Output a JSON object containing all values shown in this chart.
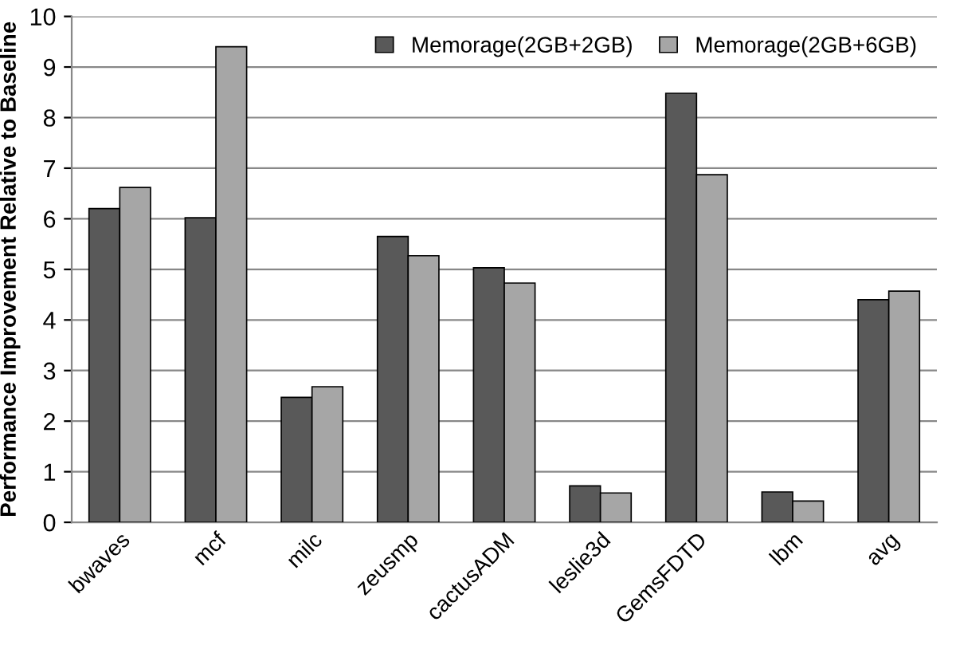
{
  "chart_data": {
    "type": "bar",
    "ylabel": "Performance Improvement Relative to Baseline",
    "categories": [
      "bwaves",
      "mcf",
      "milc",
      "zeusmp",
      "cactusADM",
      "leslie3d",
      "GemsFDTD",
      "lbm",
      "avg"
    ],
    "series": [
      {
        "name": "Memorage(2GB+2GB)",
        "color": "#595959",
        "values": [
          6.2,
          6.02,
          2.47,
          5.65,
          5.03,
          0.72,
          8.48,
          0.6,
          4.4
        ]
      },
      {
        "name": "Memorage(2GB+6GB)",
        "color": "#a6a6a6",
        "values": [
          6.62,
          9.4,
          2.68,
          5.27,
          4.73,
          0.58,
          6.87,
          0.42,
          4.57
        ]
      }
    ],
    "ylim": [
      0,
      10
    ],
    "yticks": [
      0,
      1,
      2,
      3,
      4,
      5,
      6,
      7,
      8,
      9,
      10
    ],
    "grid": "y",
    "legend": "top right"
  }
}
